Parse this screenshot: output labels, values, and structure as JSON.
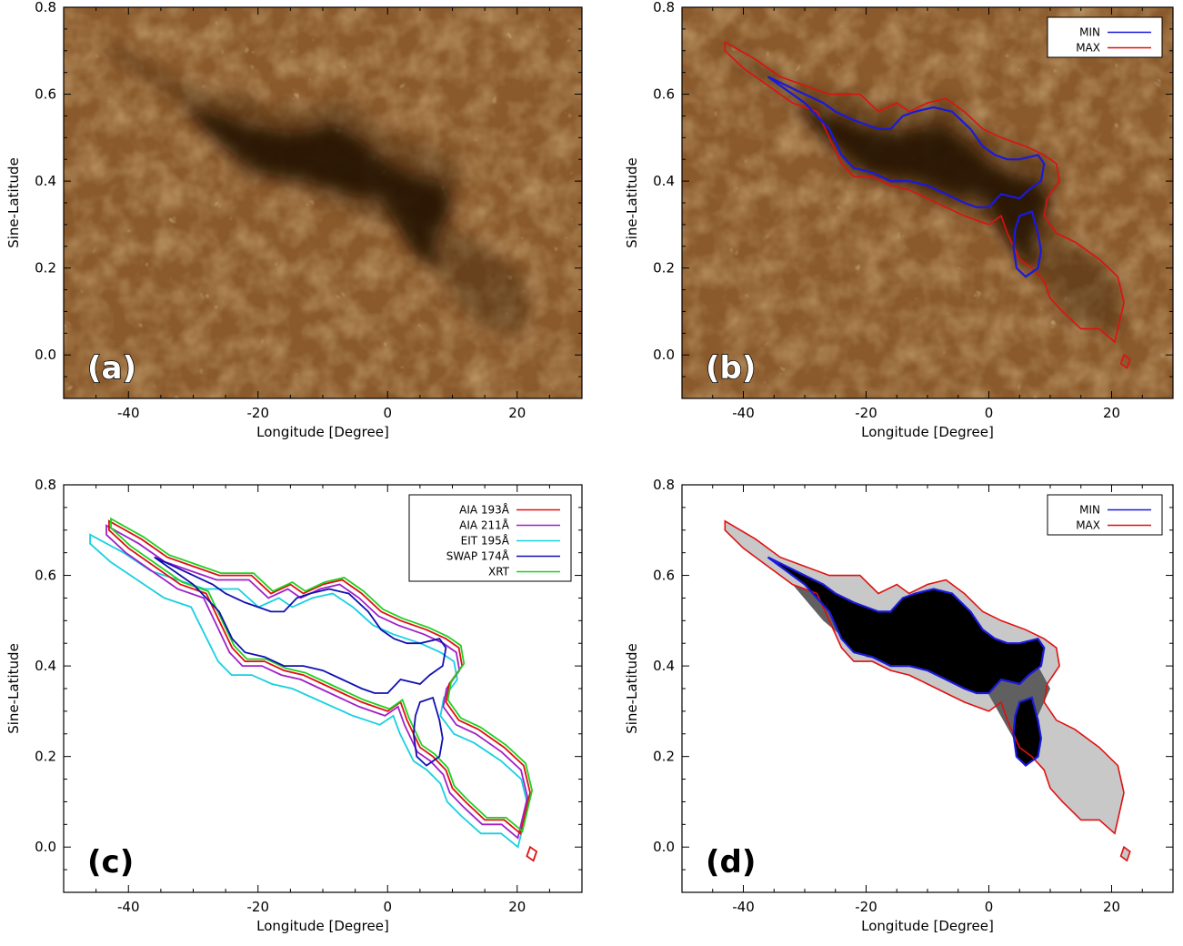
{
  "figure": {
    "xlabel": "Longitude [Degree]",
    "ylabel": "Sine-Latitude"
  },
  "colors": {
    "min": "#1a1adb",
    "max": "#e01010",
    "aia193": "#e01010",
    "aia211": "#a020c8",
    "eit195": "#18d0e0",
    "swap174": "#1010b0",
    "xrt": "#20d020",
    "sun_bg": "#8a5a2c"
  },
  "chart_data": [
    {
      "type": "image",
      "panel_label": "(a)",
      "xlabel": "Longitude [Degree]",
      "ylabel": "Sine-Latitude",
      "xlim": [
        -50,
        30
      ],
      "ylim": [
        -0.1,
        0.8
      ],
      "xticks": [
        -40,
        -20,
        0,
        20
      ],
      "yticks": [
        0.0,
        0.2,
        0.4,
        0.6,
        0.8
      ],
      "ytick_labels": [
        "0.0",
        "0.2",
        "0.4",
        "0.6",
        "0.8"
      ]
    },
    {
      "type": "image",
      "panel_label": "(b)",
      "xlabel": "Longitude [Degree]",
      "ylabel": "Sine-Latitude",
      "xlim": [
        -50,
        30
      ],
      "ylim": [
        -0.1,
        0.8
      ],
      "xticks": [
        -40,
        -20,
        0,
        20
      ],
      "yticks": [
        0.0,
        0.2,
        0.4,
        0.6,
        0.8
      ],
      "ytick_labels": [
        "0.0",
        "0.2",
        "0.4",
        "0.6",
        "0.8"
      ],
      "legend": [
        {
          "name": "MIN",
          "color": "#1a1adb"
        },
        {
          "name": "MAX",
          "color": "#e01010"
        }
      ],
      "legend_position": "top-right",
      "contours": [
        "MAX",
        "MIN"
      ]
    },
    {
      "type": "line",
      "panel_label": "(c)",
      "xlabel": "Longitude [Degree]",
      "ylabel": "Sine-Latitude",
      "xlim": [
        -50,
        30
      ],
      "ylim": [
        -0.1,
        0.8
      ],
      "xticks": [
        -40,
        -20,
        0,
        20
      ],
      "yticks": [
        0.0,
        0.2,
        0.4,
        0.6,
        0.8
      ],
      "ytick_labels": [
        "0.0",
        "0.2",
        "0.4",
        "0.6",
        "0.8"
      ],
      "legend": [
        {
          "name": "AIA 193Å",
          "color": "#e01010"
        },
        {
          "name": "AIA 211Å",
          "color": "#a020c8"
        },
        {
          "name": "EIT 195Å",
          "color": "#18d0e0"
        },
        {
          "name": "SWAP 174Å",
          "color": "#1010b0"
        },
        {
          "name": "XRT",
          "color": "#20d020"
        }
      ],
      "legend_position": "top-right"
    },
    {
      "type": "image",
      "panel_label": "(d)",
      "xlabel": "Longitude [Degree]",
      "ylabel": "Sine-Latitude",
      "xlim": [
        -50,
        30
      ],
      "ylim": [
        -0.1,
        0.8
      ],
      "xticks": [
        -40,
        -20,
        0,
        20
      ],
      "yticks": [
        0.0,
        0.2,
        0.4,
        0.6,
        0.8
      ],
      "ytick_labels": [
        "0.0",
        "0.2",
        "0.4",
        "0.6",
        "0.8"
      ],
      "legend": [
        {
          "name": "MIN",
          "color": "#1a1adb"
        },
        {
          "name": "MAX",
          "color": "#e01010"
        }
      ],
      "legend_position": "top-right",
      "contours": [
        "MAX",
        "MIN"
      ]
    }
  ],
  "shapes": {
    "max_outline": [
      [
        -43,
        0.72
      ],
      [
        -38,
        0.68
      ],
      [
        -34,
        0.64
      ],
      [
        -30,
        0.62
      ],
      [
        -26,
        0.6
      ],
      [
        -23,
        0.6
      ],
      [
        -21,
        0.6
      ],
      [
        -18,
        0.56
      ],
      [
        -15,
        0.58
      ],
      [
        -13,
        0.56
      ],
      [
        -10,
        0.58
      ],
      [
        -7,
        0.59
      ],
      [
        -4,
        0.56
      ],
      [
        -1,
        0.52
      ],
      [
        2,
        0.5
      ],
      [
        6,
        0.48
      ],
      [
        9,
        0.46
      ],
      [
        11,
        0.44
      ],
      [
        11.5,
        0.4
      ],
      [
        9.5,
        0.36
      ],
      [
        9,
        0.32
      ],
      [
        11,
        0.28
      ],
      [
        14,
        0.26
      ],
      [
        18,
        0.22
      ],
      [
        21,
        0.18
      ],
      [
        22,
        0.12
      ],
      [
        21,
        0.06
      ],
      [
        20.5,
        0.03
      ],
      [
        18,
        0.06
      ],
      [
        15,
        0.06
      ],
      [
        12,
        0.1
      ],
      [
        10,
        0.13
      ],
      [
        9,
        0.17
      ],
      [
        7,
        0.2
      ],
      [
        5,
        0.22
      ],
      [
        3,
        0.28
      ],
      [
        2,
        0.32
      ],
      [
        0,
        0.3
      ],
      [
        -2,
        0.31
      ],
      [
        -4,
        0.32
      ],
      [
        -7,
        0.34
      ],
      [
        -10,
        0.36
      ],
      [
        -13,
        0.38
      ],
      [
        -16,
        0.39
      ],
      [
        -19,
        0.41
      ],
      [
        -22,
        0.41
      ],
      [
        -24,
        0.44
      ],
      [
        -26,
        0.5
      ],
      [
        -28,
        0.56
      ],
      [
        -32,
        0.58
      ],
      [
        -36,
        0.62
      ],
      [
        -40,
        0.66
      ],
      [
        -43,
        0.7
      ]
    ],
    "min_outline": [
      [
        -36,
        0.64
      ],
      [
        -33,
        0.62
      ],
      [
        -30,
        0.6
      ],
      [
        -27,
        0.58
      ],
      [
        -25,
        0.56
      ],
      [
        -22,
        0.54
      ],
      [
        -20,
        0.53
      ],
      [
        -18,
        0.52
      ],
      [
        -16,
        0.52
      ],
      [
        -14,
        0.55
      ],
      [
        -12,
        0.56
      ],
      [
        -9,
        0.57
      ],
      [
        -6,
        0.56
      ],
      [
        -3,
        0.52
      ],
      [
        -1,
        0.48
      ],
      [
        1,
        0.46
      ],
      [
        3,
        0.45
      ],
      [
        5,
        0.45
      ],
      [
        8,
        0.46
      ],
      [
        9,
        0.44
      ],
      [
        8.5,
        0.4
      ],
      [
        6.5,
        0.38
      ],
      [
        5,
        0.36
      ],
      [
        2,
        0.37
      ],
      [
        0,
        0.34
      ],
      [
        -2,
        0.34
      ],
      [
        -4,
        0.35
      ],
      [
        -7,
        0.37
      ],
      [
        -10,
        0.39
      ],
      [
        -13,
        0.4
      ],
      [
        -16,
        0.4
      ],
      [
        -19,
        0.42
      ],
      [
        -22,
        0.43
      ],
      [
        -24,
        0.46
      ],
      [
        -26,
        0.52
      ],
      [
        -30,
        0.58
      ],
      [
        -34,
        0.62
      ]
    ],
    "min_outline2": [
      [
        5,
        0.32
      ],
      [
        7,
        0.33
      ],
      [
        8,
        0.28
      ],
      [
        8.5,
        0.24
      ],
      [
        8,
        0.2
      ],
      [
        6,
        0.18
      ],
      [
        4.5,
        0.2
      ],
      [
        4,
        0.25
      ],
      [
        4.3,
        0.29
      ]
    ],
    "max_blob": [
      [
        22,
        0.0
      ],
      [
        23,
        -0.01
      ],
      [
        22.5,
        -0.03
      ],
      [
        21.5,
        -0.02
      ]
    ],
    "dark_core": [
      [
        -32,
        0.58
      ],
      [
        -26,
        0.55
      ],
      [
        -20,
        0.52
      ],
      [
        -14,
        0.51
      ],
      [
        -8,
        0.53
      ],
      [
        -4,
        0.49
      ],
      [
        0,
        0.44
      ],
      [
        4,
        0.41
      ],
      [
        8,
        0.4
      ],
      [
        10,
        0.35
      ],
      [
        7,
        0.26
      ],
      [
        8,
        0.2
      ],
      [
        4,
        0.24
      ],
      [
        -1,
        0.36
      ],
      [
        -6,
        0.37
      ],
      [
        -12,
        0.4
      ],
      [
        -20,
        0.42
      ],
      [
        -27,
        0.5
      ]
    ]
  }
}
